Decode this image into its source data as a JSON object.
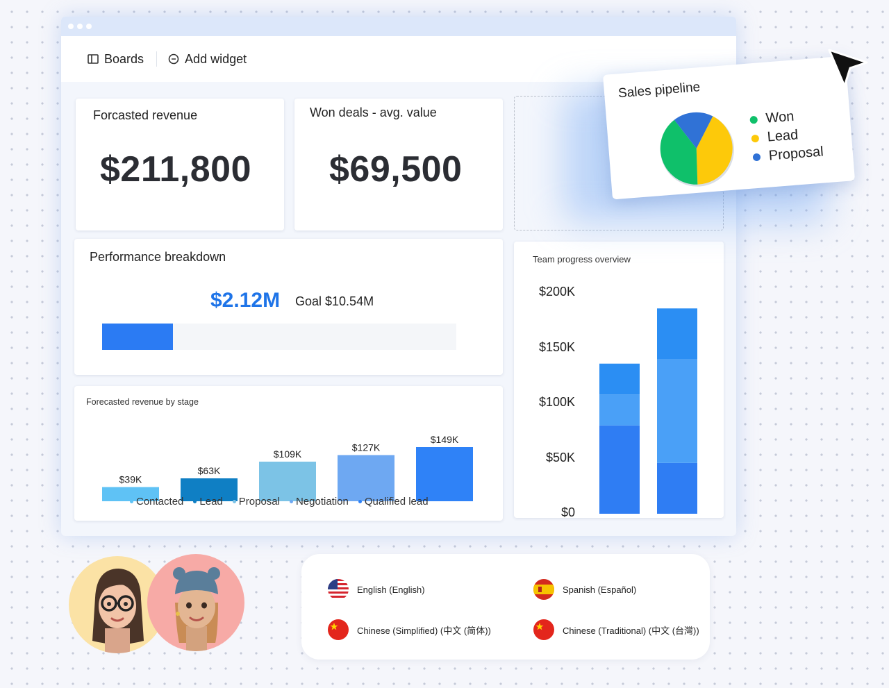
{
  "toolbar": {
    "boards_label": "Boards",
    "add_widget_label": "Add widget"
  },
  "forecast_card": {
    "title": "Forcasted revenue",
    "value": "$211,800"
  },
  "won_card": {
    "title": "Won deals - avg. value",
    "value": "$69,500"
  },
  "performance": {
    "title": "Performance breakdown",
    "value": "$2.12M",
    "goal": "Goal $10.54M",
    "progress_fraction": 0.2
  },
  "stage_chart": {
    "title": "Forecasted revenue by stage",
    "legend": [
      "Contacted",
      "Lead",
      "Proposal",
      "Negotiation",
      "Qualified lead"
    ],
    "colors": {
      "contacted": "#5fc2f5",
      "lead": "#0f7fc4",
      "proposal": "#7cc3e6",
      "negotiation": "#6ea8f2",
      "qualified": "#2f82f7"
    }
  },
  "team_chart": {
    "title": "Team progress overview",
    "ticks": [
      "$200K",
      "$150K",
      "$100K",
      "$50K",
      "$0"
    ]
  },
  "pipeline": {
    "title": "Sales pipeline",
    "legend": [
      {
        "label": "Won",
        "color": "#0fc06a"
      },
      {
        "label": "Lead",
        "color": "#fdc90a"
      },
      {
        "label": "Proposal",
        "color": "#3072d6"
      }
    ]
  },
  "languages": [
    {
      "label": "English (English)",
      "flag": "us-flag-icon"
    },
    {
      "label": "Spanish (Español)",
      "flag": "spain-flag-icon"
    },
    {
      "label": "Chinese (Simplified) (中文 (简体))",
      "flag": "china-flag-icon"
    },
    {
      "label": "Chinese (Traditional) (中文 (台灣))",
      "flag": "china-flag-icon"
    }
  ],
  "chart_data": [
    {
      "type": "bar",
      "title": "Forecasted revenue by stage",
      "categories": [
        "Contacted",
        "Lead",
        "Proposal",
        "Negotiation",
        "Qualified lead"
      ],
      "values": [
        39,
        63,
        109,
        127,
        149
      ],
      "data_labels": [
        "$39K",
        "$63K",
        "$109K",
        "$127K",
        "$149K"
      ],
      "unit": "$K",
      "legend": "bottom"
    },
    {
      "type": "bar",
      "title": "Team progress overview",
      "stacked": true,
      "ylim": [
        0,
        200000
      ],
      "yticks": [
        "$0",
        "$50K",
        "$100K",
        "$150K",
        "$200K"
      ],
      "series": [
        {
          "values": [
            80000,
            46000
          ],
          "color": "#2f7df3"
        },
        {
          "values": [
            28000,
            94000
          ],
          "color": "#4aa0f7"
        },
        {
          "values": [
            28000,
            46000
          ],
          "color": "#2b8ef3"
        }
      ]
    },
    {
      "type": "pie",
      "title": "Sales pipeline",
      "labels": [
        "Won",
        "Lead",
        "Proposal"
      ],
      "values": [
        40,
        42,
        18
      ],
      "legend": "right"
    }
  ]
}
